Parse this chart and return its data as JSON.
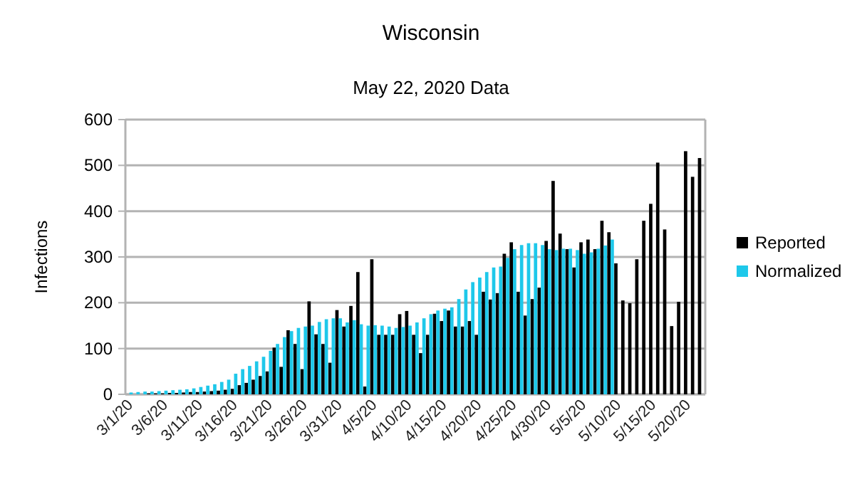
{
  "chart_data": {
    "type": "bar",
    "title": "Wisconsin",
    "subtitle": "May 22, 2020 Data",
    "ylabel": "Infections",
    "categories": [
      "3/1/20",
      null,
      null,
      null,
      null,
      "3/6/20",
      null,
      null,
      null,
      null,
      "3/11/20",
      null,
      null,
      null,
      null,
      "3/16/20",
      null,
      null,
      null,
      null,
      "3/21/20",
      null,
      null,
      null,
      null,
      "3/26/20",
      null,
      null,
      null,
      null,
      "3/31/20",
      null,
      null,
      null,
      null,
      "4/5/20",
      null,
      null,
      null,
      null,
      "4/10/20",
      null,
      null,
      null,
      null,
      "4/15/20",
      null,
      null,
      null,
      null,
      "4/20/20",
      null,
      null,
      null,
      null,
      "4/25/20",
      null,
      null,
      null,
      null,
      "4/30/20",
      null,
      null,
      null,
      null,
      "5/5/20",
      null,
      null,
      null,
      null,
      "5/10/20",
      null,
      null,
      null,
      null,
      "5/15/20",
      null,
      null,
      null,
      null,
      "5/20/20",
      null,
      null
    ],
    "series": [
      {
        "name": "Reported",
        "color": "#000000",
        "values": [
          null,
          null,
          null,
          2,
          2,
          2,
          3,
          3,
          4,
          5,
          5,
          6,
          7,
          8,
          10,
          12,
          20,
          25,
          32,
          40,
          50,
          102,
          60,
          140,
          110,
          55,
          203,
          131,
          110,
          69,
          184,
          148,
          193,
          267,
          17,
          295,
          130,
          130,
          130,
          175,
          182,
          130,
          90,
          130,
          176,
          160,
          183,
          148,
          148,
          160,
          130,
          224,
          207,
          221,
          307,
          332,
          224,
          172,
          208,
          233,
          335,
          466,
          351,
          317,
          277,
          332,
          338,
          317,
          379,
          354,
          286,
          205,
          199,
          295,
          379,
          416,
          506,
          360,
          149,
          202,
          531,
          475,
          516
        ]
      },
      {
        "name": "Normalized",
        "color": "#1ec8ea",
        "values": [
          4,
          5,
          6,
          6,
          7,
          8,
          9,
          10,
          11,
          13,
          16,
          19,
          22,
          27,
          32,
          45,
          55,
          62,
          72,
          82,
          95,
          110,
          125,
          138,
          145,
          148,
          150,
          158,
          164,
          166,
          166,
          157,
          162,
          153,
          150,
          151,
          150,
          148,
          145,
          147,
          150,
          157,
          166,
          175,
          183,
          187,
          190,
          208,
          229,
          245,
          255,
          267,
          277,
          279,
          298,
          317,
          326,
          330,
          330,
          326,
          317,
          315,
          318,
          318,
          315,
          307,
          310,
          318,
          325,
          338,
          null,
          null,
          null,
          null,
          null,
          null,
          null,
          null,
          null,
          null,
          null,
          null,
          null
        ]
      }
    ],
    "ylim": [
      0,
      600
    ],
    "yticks": [
      0,
      100,
      200,
      300,
      400,
      500,
      600
    ],
    "grid": "y",
    "legend": "right"
  }
}
